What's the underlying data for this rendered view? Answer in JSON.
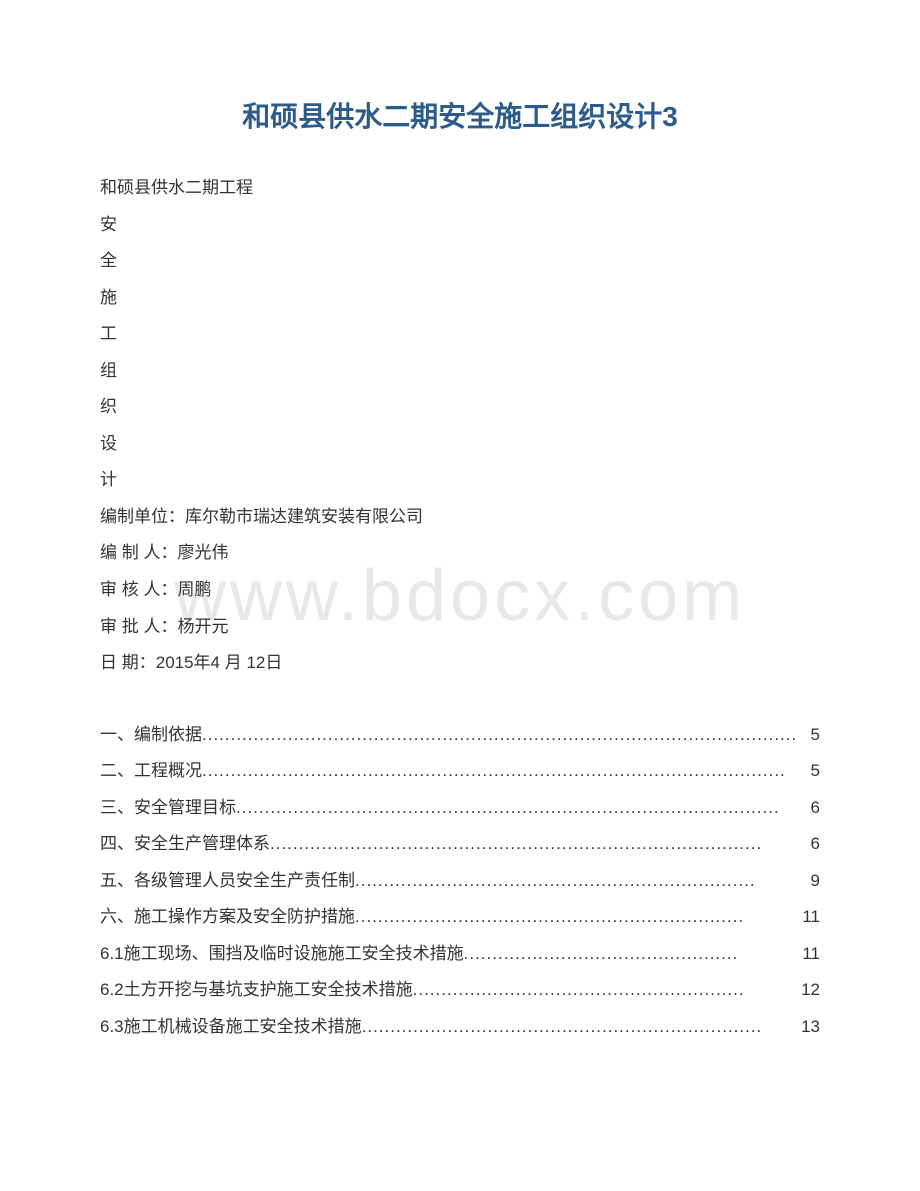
{
  "title": "和硕县供水二期安全施工组织设计3",
  "header": {
    "project_name": "和硕县供水二期工程",
    "vertical_text": [
      "安",
      "全",
      "施",
      "工",
      "组",
      "织",
      "设",
      "计"
    ],
    "unit_label": "编制单位：",
    "unit_value": "库尔勒市瑞达建筑安装有限公司",
    "author_label": "编 制 人：",
    "author_value": "廖光伟",
    "reviewer_label": "审 核 人：",
    "reviewer_value": "周鹏",
    "approver_label": "审 批 人：",
    "approver_value": "杨开元",
    "date_label": "日 期：",
    "date_value": "2015年4 月 12日"
  },
  "watermark": "www.bdocx.com",
  "toc": [
    {
      "label": "一、编制依据",
      "page": "5"
    },
    {
      "label": "二、工程概况",
      "page": "5"
    },
    {
      "label": "三、安全管理目标",
      "page": "6"
    },
    {
      "label": "四、安全生产管理体系",
      "page": "6"
    },
    {
      "label": "五、各级管理人员安全生产责任制",
      "page": "9"
    },
    {
      "label": "六、施工操作方案及安全防护措施",
      "page": "11"
    },
    {
      "label": "6.1施工现场、围挡及临时设施施工安全技术措施",
      "page": "11"
    },
    {
      "label": "6.2土方开挖与基坑支护施工安全技术措施",
      "page": "12"
    },
    {
      "label": "6.3施工机械设备施工安全技术措施",
      "page": "13"
    }
  ],
  "colors": {
    "title_color": "#2e5c8a",
    "text_color": "#333333",
    "watermark_color": "#e8e8e8",
    "background_color": "#ffffff"
  },
  "typography": {
    "title_fontsize": 28,
    "body_fontsize": 17,
    "watermark_fontsize": 72,
    "line_height": 2.15
  }
}
